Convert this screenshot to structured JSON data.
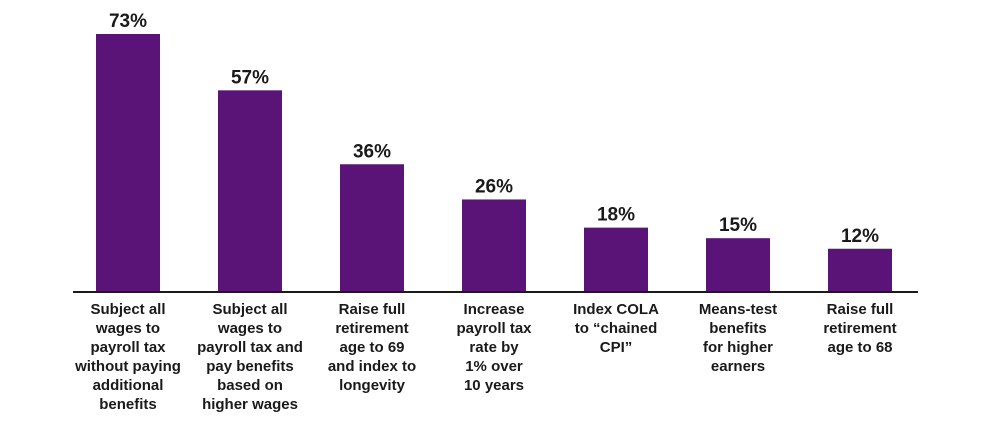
{
  "colors": {
    "bar": "#5a1478",
    "axis": "#1a1a1a",
    "text": "#1a1a1a"
  },
  "chart_data": {
    "type": "bar",
    "categories": [
      [
        "Subject all",
        "wages to",
        "payroll tax",
        "without paying",
        "additional",
        "benefits"
      ],
      [
        "Subject all",
        "wages to",
        "payroll tax and",
        "pay benefits",
        "based on",
        "higher wages"
      ],
      [
        "Raise full",
        "retirement",
        "age to 69",
        "and index to",
        "longevity"
      ],
      [
        "Increase",
        "payroll tax",
        "rate by",
        "1% over",
        "10 years"
      ],
      [
        "Index COLA",
        "to “chained",
        "CPI”"
      ],
      [
        "Means-test",
        "benefits",
        "for higher",
        "earners"
      ],
      [
        "Raise full",
        "retirement",
        "age to 68"
      ]
    ],
    "values": [
      73,
      57,
      36,
      26,
      18,
      15,
      12
    ],
    "value_labels": [
      "73%",
      "57%",
      "36%",
      "26%",
      "18%",
      "15%",
      "12%"
    ],
    "unit": "%",
    "ylim": [
      0,
      73
    ],
    "grid": false,
    "legend": "none"
  }
}
